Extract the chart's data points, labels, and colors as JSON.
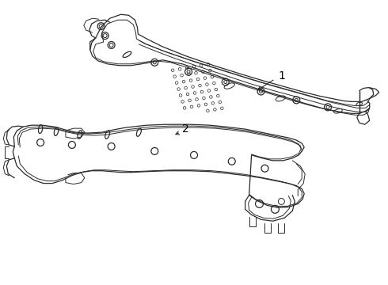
{
  "background_color": "#ffffff",
  "line_color": "#2a2a2a",
  "label_color": "#000000",
  "label_1": "1",
  "label_2": "2",
  "figsize": [
    4.9,
    3.6
  ],
  "dpi": 100
}
